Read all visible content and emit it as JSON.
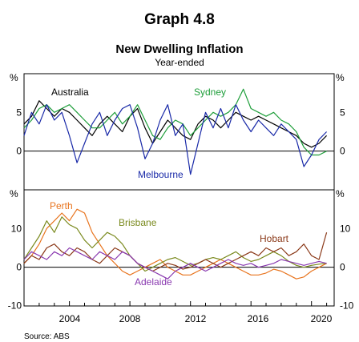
{
  "title": "Graph 4.8",
  "subtitle": "New Dwelling Inflation",
  "subsubtitle": "Year-ended",
  "source": "Source:   ABS",
  "unit": "%",
  "chart_data": [
    {
      "type": "line",
      "panel": "top",
      "ylim": [
        -5,
        10
      ],
      "yticks": [
        "0",
        "5"
      ],
      "xlim": [
        2001,
        2021.5
      ],
      "series": [
        {
          "name": "Australia",
          "color": "#000000",
          "x": [
            2001.0,
            2001.5,
            2002.0,
            2002.5,
            2003.0,
            2003.5,
            2004.0,
            2004.5,
            2005.0,
            2005.5,
            2006.0,
            2006.5,
            2007.0,
            2007.5,
            2008.0,
            2008.5,
            2009.0,
            2009.5,
            2010.0,
            2010.5,
            2011.0,
            2011.5,
            2012.0,
            2012.5,
            2013.0,
            2013.5,
            2014.0,
            2014.5,
            2015.0,
            2015.5,
            2016.0,
            2016.5,
            2017.0,
            2017.5,
            2018.0,
            2018.5,
            2019.0,
            2019.5,
            2020.0,
            2020.5,
            2021.0
          ],
          "y": [
            3.5,
            4.5,
            6.5,
            5.5,
            4.5,
            5.5,
            5.0,
            4.0,
            3.0,
            2.0,
            3.5,
            4.5,
            3.5,
            2.5,
            4.5,
            5.5,
            3.0,
            1.0,
            2.5,
            4.0,
            3.0,
            2.0,
            1.5,
            3.5,
            4.5,
            4.0,
            3.0,
            4.0,
            5.0,
            4.5,
            4.0,
            4.5,
            4.0,
            3.5,
            3.0,
            2.5,
            2.0,
            1.0,
            0.5,
            1.0,
            2.0
          ]
        },
        {
          "name": "Sydney",
          "color": "#1e9e3a",
          "x": [
            2001.0,
            2001.5,
            2002.0,
            2002.5,
            2003.0,
            2003.5,
            2004.0,
            2004.5,
            2005.0,
            2005.5,
            2006.0,
            2006.5,
            2007.0,
            2007.5,
            2008.0,
            2008.5,
            2009.0,
            2009.5,
            2010.0,
            2010.5,
            2011.0,
            2011.5,
            2012.0,
            2012.5,
            2013.0,
            2013.5,
            2014.0,
            2014.5,
            2015.0,
            2015.5,
            2016.0,
            2016.5,
            2017.0,
            2017.5,
            2018.0,
            2018.5,
            2019.0,
            2019.5,
            2020.0,
            2020.5,
            2021.0
          ],
          "y": [
            3.0,
            4.0,
            5.5,
            6.0,
            5.0,
            5.5,
            6.0,
            5.0,
            4.0,
            3.0,
            3.0,
            4.0,
            5.0,
            3.5,
            4.5,
            6.0,
            4.0,
            2.0,
            1.5,
            3.0,
            4.0,
            3.5,
            2.0,
            3.0,
            4.0,
            5.0,
            4.5,
            5.0,
            6.0,
            8.0,
            5.5,
            5.0,
            4.5,
            5.0,
            4.0,
            3.5,
            2.5,
            0.5,
            -0.5,
            -0.5,
            0.0
          ]
        },
        {
          "name": "Melbourne",
          "color": "#1a2aa8",
          "x": [
            2001.0,
            2001.5,
            2002.0,
            2002.5,
            2003.0,
            2003.5,
            2004.0,
            2004.5,
            2005.0,
            2005.5,
            2006.0,
            2006.5,
            2007.0,
            2007.5,
            2008.0,
            2008.5,
            2009.0,
            2009.5,
            2010.0,
            2010.5,
            2011.0,
            2011.5,
            2012.0,
            2012.5,
            2013.0,
            2013.5,
            2014.0,
            2014.5,
            2015.0,
            2015.5,
            2016.0,
            2016.5,
            2017.0,
            2017.5,
            2018.0,
            2018.5,
            2019.0,
            2019.5,
            2020.0,
            2020.5,
            2021.0
          ],
          "y": [
            2.0,
            5.0,
            3.5,
            6.0,
            4.0,
            5.0,
            2.0,
            -1.5,
            1.0,
            3.5,
            5.0,
            2.0,
            4.0,
            5.5,
            6.0,
            3.0,
            -1.0,
            1.0,
            4.0,
            6.0,
            2.0,
            3.5,
            -3.0,
            1.0,
            5.0,
            3.0,
            5.5,
            3.0,
            6.0,
            4.0,
            2.5,
            4.0,
            3.0,
            2.0,
            3.5,
            2.5,
            1.5,
            -2.0,
            -0.5,
            1.5,
            2.5
          ]
        }
      ]
    },
    {
      "type": "line",
      "panel": "bottom",
      "ylim": [
        -10,
        20
      ],
      "yticks": [
        "-10",
        "0",
        "10"
      ],
      "xlim": [
        2001,
        2021.5
      ],
      "series": [
        {
          "name": "Perth",
          "color": "#e8741e",
          "x": [
            2001.0,
            2001.5,
            2002.0,
            2002.5,
            2003.0,
            2003.5,
            2004.0,
            2004.5,
            2005.0,
            2005.5,
            2006.0,
            2006.5,
            2007.0,
            2007.5,
            2008.0,
            2008.5,
            2009.0,
            2009.5,
            2010.0,
            2010.5,
            2011.0,
            2011.5,
            2012.0,
            2012.5,
            2013.0,
            2013.5,
            2014.0,
            2014.5,
            2015.0,
            2015.5,
            2016.0,
            2016.5,
            2017.0,
            2017.5,
            2018.0,
            2018.5,
            2019.0,
            2019.5,
            2020.0,
            2020.5,
            2021.0
          ],
          "y": [
            1.0,
            3.0,
            6.0,
            10.0,
            12.0,
            14.0,
            12.0,
            15.0,
            14.0,
            9.0,
            6.0,
            3.0,
            1.0,
            -1.0,
            -2.0,
            -1.0,
            0.0,
            1.0,
            2.0,
            0.0,
            -1.0,
            -2.0,
            -2.0,
            -1.0,
            0.0,
            1.0,
            2.0,
            1.0,
            0.0,
            -1.0,
            -2.0,
            -2.0,
            -1.5,
            -0.5,
            -1.0,
            -2.0,
            -3.0,
            -2.5,
            -1.0,
            0.0,
            1.0
          ]
        },
        {
          "name": "Brisbane",
          "color": "#7a8a1e",
          "x": [
            2001.0,
            2001.5,
            2002.0,
            2002.5,
            2003.0,
            2003.5,
            2004.0,
            2004.5,
            2005.0,
            2005.5,
            2006.0,
            2006.5,
            2007.0,
            2007.5,
            2008.0,
            2008.5,
            2009.0,
            2009.5,
            2010.0,
            2010.5,
            2011.0,
            2011.5,
            2012.0,
            2012.5,
            2013.0,
            2013.5,
            2014.0,
            2014.5,
            2015.0,
            2015.5,
            2016.0,
            2016.5,
            2017.0,
            2017.5,
            2018.0,
            2018.5,
            2019.0,
            2019.5,
            2020.0,
            2020.5,
            2021.0
          ],
          "y": [
            2.0,
            5.0,
            8.0,
            12.0,
            9.0,
            13.0,
            11.0,
            10.0,
            7.0,
            5.0,
            7.0,
            9.0,
            8.0,
            6.0,
            3.0,
            1.0,
            -1.0,
            0.0,
            1.0,
            2.0,
            2.5,
            1.5,
            0.5,
            1.0,
            2.0,
            2.5,
            2.0,
            3.0,
            4.0,
            2.5,
            1.5,
            2.0,
            3.0,
            4.0,
            3.0,
            1.5,
            0.5,
            0.0,
            0.5,
            0.8,
            1.0
          ]
        },
        {
          "name": "Hobart",
          "color": "#8b3a1a",
          "x": [
            2001.0,
            2001.5,
            2002.0,
            2002.5,
            2003.0,
            2003.5,
            2004.0,
            2004.5,
            2005.0,
            2005.5,
            2006.0,
            2006.5,
            2007.0,
            2007.5,
            2008.0,
            2008.5,
            2009.0,
            2009.5,
            2010.0,
            2010.5,
            2011.0,
            2011.5,
            2012.0,
            2012.5,
            2013.0,
            2013.5,
            2014.0,
            2014.5,
            2015.0,
            2015.5,
            2016.0,
            2016.5,
            2017.0,
            2017.5,
            2018.0,
            2018.5,
            2019.0,
            2019.5,
            2020.0,
            2020.5,
            2021.0
          ],
          "y": [
            1.0,
            3.0,
            2.0,
            5.0,
            6.0,
            4.0,
            3.0,
            5.0,
            4.0,
            2.0,
            1.0,
            3.0,
            5.0,
            4.0,
            3.0,
            1.0,
            0.0,
            -1.0,
            0.0,
            1.0,
            0.5,
            -0.5,
            0.0,
            1.0,
            2.0,
            1.0,
            0.0,
            1.0,
            2.0,
            3.0,
            4.0,
            3.0,
            5.0,
            4.0,
            5.0,
            3.0,
            4.0,
            6.0,
            3.0,
            2.0,
            9.0
          ]
        },
        {
          "name": "Adelaide",
          "color": "#8a3ab0",
          "x": [
            2001.0,
            2001.5,
            2002.0,
            2002.5,
            2003.0,
            2003.5,
            2004.0,
            2004.5,
            2005.0,
            2005.5,
            2006.0,
            2006.5,
            2007.0,
            2007.5,
            2008.0,
            2008.5,
            2009.0,
            2009.5,
            2010.0,
            2010.5,
            2011.0,
            2011.5,
            2012.0,
            2012.5,
            2013.0,
            2013.5,
            2014.0,
            2014.5,
            2015.0,
            2015.5,
            2016.0,
            2016.5,
            2017.0,
            2017.5,
            2018.0,
            2018.5,
            2019.0,
            2019.5,
            2020.0,
            2020.5,
            2021.0
          ],
          "y": [
            2.0,
            4.0,
            3.0,
            2.0,
            4.0,
            3.0,
            5.0,
            4.0,
            3.0,
            2.0,
            4.0,
            3.0,
            2.0,
            4.0,
            3.0,
            1.0,
            0.0,
            -1.0,
            -2.0,
            -3.0,
            -1.0,
            0.0,
            1.0,
            0.0,
            -1.0,
            0.0,
            1.0,
            2.0,
            1.0,
            0.5,
            1.0,
            0.0,
            0.5,
            1.0,
            2.0,
            1.5,
            1.0,
            0.5,
            1.0,
            1.5,
            1.0
          ]
        }
      ]
    }
  ],
  "xticks": [
    "2004",
    "2008",
    "2012",
    "2016",
    "2020"
  ],
  "labels": {
    "australia": "Australia",
    "sydney": "Sydney",
    "melbourne": "Melbourne",
    "perth": "Perth",
    "brisbane": "Brisbane",
    "hobart": "Hobart",
    "adelaide": "Adelaide"
  }
}
